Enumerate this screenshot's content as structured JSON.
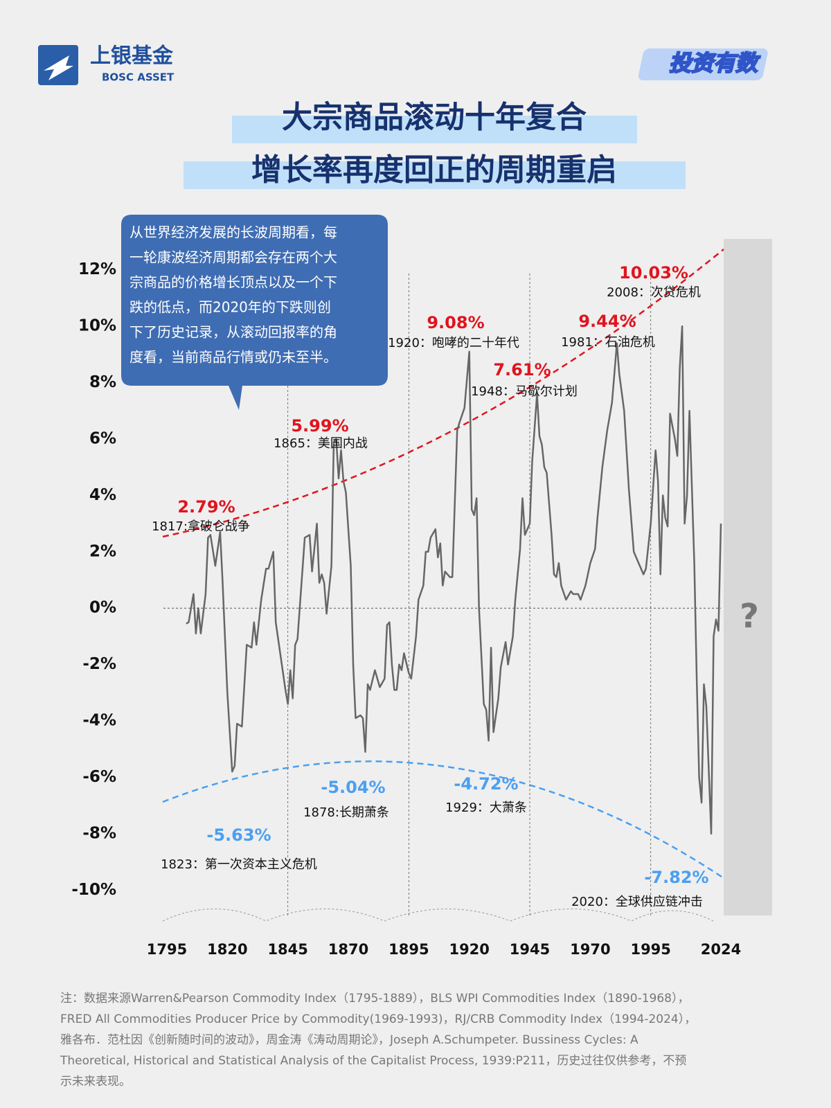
{
  "header": {
    "brand": "上银基金",
    "brand_en": "BOSC ASSET",
    "badge": "投资有数",
    "title_lines": [
      "大宗商品滚动十年复合",
      "增长率再度回正的周期重启"
    ]
  },
  "callout": [
    "从世界经济发展的长波周期看，每",
    "一轮康波经济周期都会存在两个大",
    "宗商品的价格增长顶点以及一个下",
    "跌的低点，而2020年的下跌则创",
    "下了历史记录，从滚动回报率的角",
    "度看，当前商品行情或仍未至半。"
  ],
  "chart_data": {
    "type": "line",
    "x": [
      1803,
      1804,
      1806,
      1807,
      1808,
      1809,
      1811,
      1812,
      1813,
      1815,
      1817,
      1818,
      1820,
      1822,
      1823,
      1824,
      1826,
      1828,
      1830,
      1831,
      1832,
      1834,
      1836,
      1837,
      1839,
      1840,
      1842,
      1844,
      1845,
      1846,
      1847,
      1848,
      1849,
      1852,
      1854,
      1855,
      1857,
      1858,
      1859,
      1860,
      1861,
      1863,
      1864,
      1865,
      1866,
      1867,
      1868,
      1869,
      1871,
      1872,
      1873,
      1875,
      1876,
      1877,
      1878,
      1879,
      1881,
      1882,
      1883,
      1885,
      1886,
      1887,
      1888,
      1889,
      1890,
      1891,
      1892,
      1893,
      1895,
      1896,
      1898,
      1899,
      1901,
      1902,
      1903,
      1904,
      1906,
      1907,
      1908,
      1909,
      1910,
      1912,
      1913,
      1915,
      1916,
      1918,
      1920,
      1921,
      1922,
      1923,
      1924,
      1926,
      1927,
      1928,
      1929,
      1930,
      1932,
      1933,
      1935,
      1936,
      1938,
      1939,
      1941,
      1942,
      1943,
      1945,
      1946,
      1948,
      1949,
      1950,
      1951,
      1952,
      1954,
      1955,
      1956,
      1957,
      1958,
      1960,
      1962,
      1963,
      1965,
      1966,
      1968,
      1970,
      1972,
      1973,
      1975,
      1977,
      1978,
      1979,
      1981,
      1982,
      1984,
      1986,
      1988,
      1990,
      1991,
      1992,
      1993,
      1995,
      1997,
      1998,
      1999,
      2000,
      2001,
      2002,
      2003,
      2005,
      2006,
      2007,
      2008,
      2009,
      2010,
      2011,
      2013,
      2014,
      2015,
      2016,
      2017,
      2018,
      2020,
      2021,
      2022,
      2023,
      2024
    ],
    "series": [
      {
        "color": "#666666",
        "values": [
          -0.55,
          -0.5,
          0.5,
          -0.9,
          0,
          -0.9,
          0.5,
          2.5,
          2.6,
          1.5,
          2.7,
          1,
          -3,
          -5.8,
          -5.6,
          -4.1,
          -4.2,
          -1.3,
          -1.4,
          -0.5,
          -1.3,
          0.3,
          1.4,
          1.4,
          2,
          -0.5,
          -1.7,
          -2.9,
          -3.4,
          -2.2,
          -3.2,
          -1.3,
          -1.1,
          2.5,
          2.6,
          1.3,
          3,
          0.9,
          1.2,
          0.9,
          -0.2,
          1.5,
          5.9,
          6,
          4.6,
          5.6,
          4.5,
          4.1,
          1.5,
          -2,
          -3.9,
          -3.8,
          -3.9,
          -5.1,
          -2.7,
          -2.9,
          -2.2,
          -2.5,
          -2.8,
          -2.5,
          -0.6,
          -0.5,
          -2,
          -2.9,
          -2.9,
          -2,
          -2.2,
          -1.6,
          -2.3,
          -2.5,
          -1,
          0.3,
          0.8,
          2,
          2,
          2.5,
          2.8,
          1.8,
          2.3,
          0.8,
          1.3,
          1.1,
          1.1,
          6.3,
          6.6,
          7.1,
          9.1,
          3.5,
          3.3,
          3.9,
          0,
          -3.4,
          -3.6,
          -4.7,
          -1.4,
          -4.4,
          -3.2,
          -2.1,
          -1.2,
          -2,
          -1,
          0.3,
          2.1,
          3.9,
          2.6,
          3,
          5.2,
          7.6,
          6.1,
          5.8,
          5,
          4.8,
          2.6,
          1.2,
          1.1,
          1.6,
          0.8,
          0.3,
          0.6,
          0.5,
          0.5,
          0.3,
          0.8,
          1.6,
          2.1,
          3.2,
          5,
          6.3,
          6.8,
          7.3,
          9.4,
          8.3,
          7,
          4.2,
          2,
          1.6,
          1.4,
          1.2,
          1.4,
          3,
          5.6,
          4.5,
          1.2,
          4,
          3.2,
          2.9,
          6.9,
          6,
          5.4,
          8.5,
          10,
          3,
          4,
          7,
          1.6,
          -2.5,
          -6,
          -6.9,
          -2.7,
          -3.5,
          -8,
          -1,
          -0.4,
          -0.8,
          3
        ]
      }
    ],
    "xlim": [
      1795,
      2024
    ],
    "xticks": [
      1795,
      1820,
      1845,
      1870,
      1895,
      1920,
      1945,
      1970,
      1995,
      2024
    ],
    "ylim": [
      -11,
      13
    ],
    "yticks": [
      {
        "value": -10,
        "label": "-10%"
      },
      {
        "value": -8,
        "label": "-8%"
      },
      {
        "value": -6,
        "label": "-6%"
      },
      {
        "value": -4,
        "label": "-4%"
      },
      {
        "value": -2,
        "label": "-2%"
      },
      {
        "value": 0,
        "label": "0%"
      },
      {
        "value": 2,
        "label": "2%"
      },
      {
        "value": 4,
        "label": "4%"
      },
      {
        "value": 6,
        "label": "6%"
      },
      {
        "value": 8,
        "label": "8%"
      },
      {
        "value": 10,
        "label": "10%"
      },
      {
        "value": 12,
        "label": "12%"
      }
    ],
    "peak_color": "#e0141e",
    "trough_color": "#4a9ff0",
    "peaks": [
      {
        "value": 2.79,
        "label": "2.79%",
        "text": "1817:拿破仑战争"
      },
      {
        "value": 5.99,
        "label": "5.99%",
        "text": "1865：美国内战"
      },
      {
        "value": 9.08,
        "label": "9.08%",
        "text": "1920：咆哮的二十年代"
      },
      {
        "value": 7.61,
        "label": "7.61%",
        "text": "1948：马歇尔计划"
      },
      {
        "value": 9.44,
        "label": "9.44%",
        "text": "1981：石油危机"
      },
      {
        "value": 10.03,
        "label": "10.03%",
        "text": "2008：次贷危机"
      }
    ],
    "troughs": [
      {
        "value": -5.63,
        "label": "-5.63%",
        "text": "1823：第一次资本主义危机"
      },
      {
        "value": -5.04,
        "label": "-5.04%",
        "text": "1878:长期萧条"
      },
      {
        "value": -4.72,
        "label": "-4.72%",
        "text": "1929：大萧条"
      },
      {
        "value": -7.82,
        "label": "-7.82%",
        "text": "2020：全球供应链冲击"
      }
    ],
    "future_mark": "?"
  },
  "footnote": [
    "注：数据来源Warren&Pearson Commodity Index（1795-1889），BLS WPI Commodities Index（1890-1968），",
    "FRED All Commodities Producer Price by Commodity(1969-1993)，RJ/CRB Commodity Index（1994-2024），",
    "雅各布．范杜因《创新随时间的波动》，周金涛《涛动周期论》，Joseph  A.Schumpeter.  Bussiness  Cycles:  A",
    "Theoretical, Historical and Statistical Analysis of the Capitalist Process, 1939:P211，历史过往仅供参考，不预",
    "示未来表现。"
  ]
}
